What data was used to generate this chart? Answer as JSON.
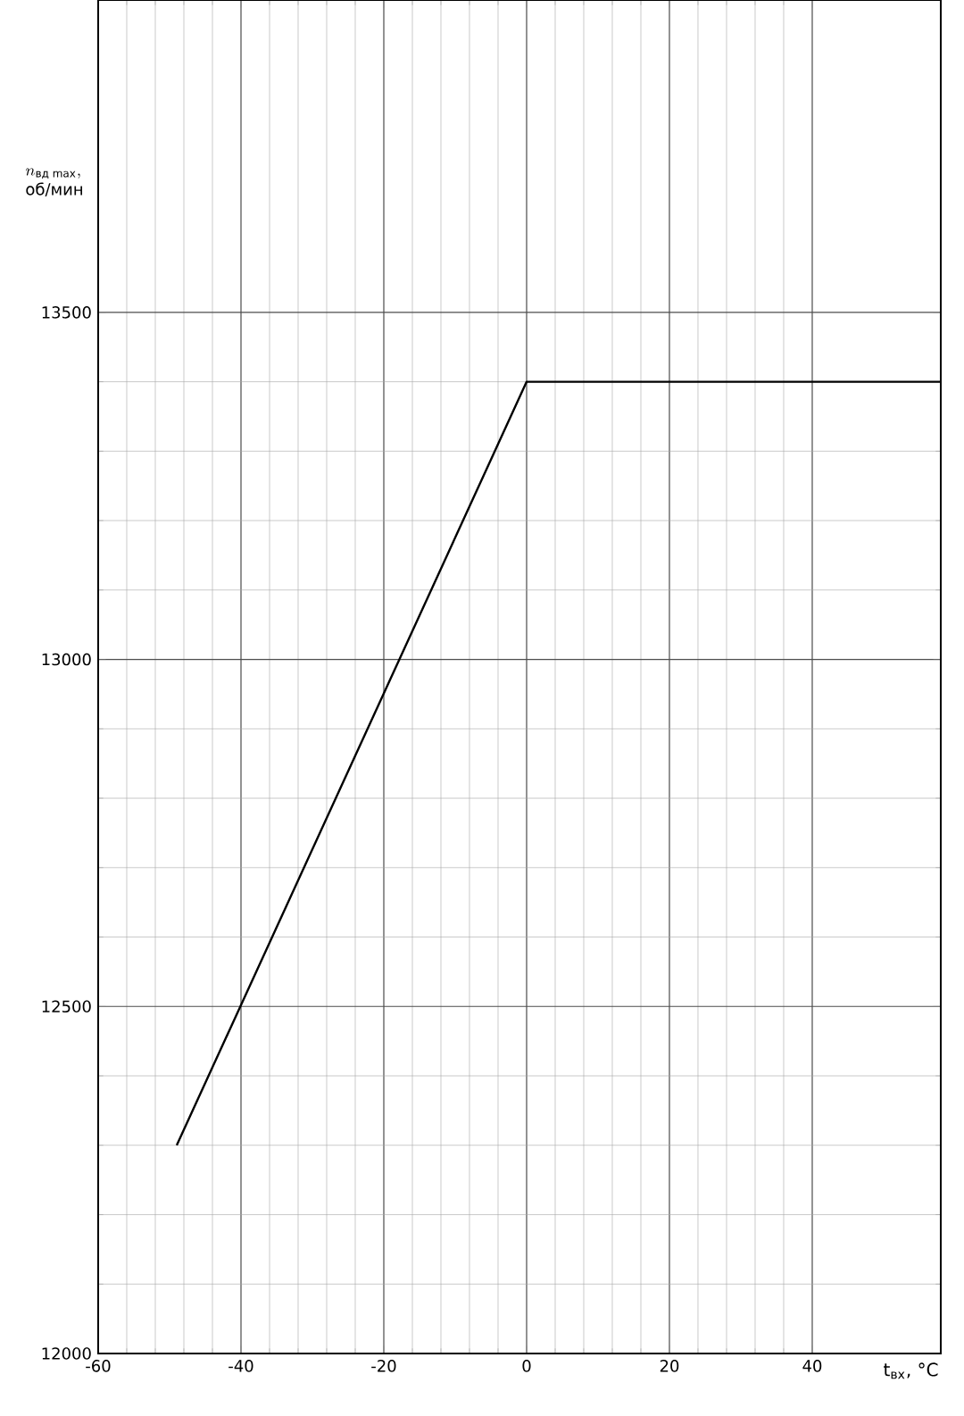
{
  "chart_data": {
    "type": "line",
    "xlabel": "t$_{вх}$, °C",
    "ylabel": "\\begin{array}{l}n_{\\text{вд max}},\\\\ \\text{об/мин}\\end{array}",
    "x": [
      -49,
      0,
      58
    ],
    "series": [
      {
        "color": "#000000",
        "values": [
          12300,
          13400,
          13400
        ]
      }
    ],
    "xlim": [
      -60,
      58
    ],
    "ylim": [
      12000,
      13950
    ],
    "xticks": [
      -60,
      -40,
      -20,
      0,
      20,
      40
    ],
    "yticks": [
      12000,
      12500,
      13000,
      13500
    ],
    "grid": true,
    "marker": "none",
    "line_style": "solid"
  }
}
